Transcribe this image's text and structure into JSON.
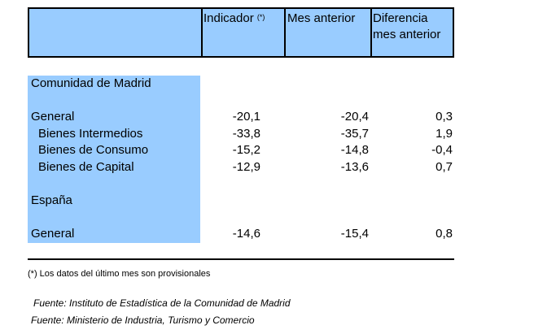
{
  "table": {
    "header": {
      "indicador": "Indicador",
      "indicador_mark": "(*)",
      "mes_anterior": "Mes anterior",
      "diferencia_line1": "Diferencia",
      "diferencia_line2": "mes anterior"
    },
    "sections": [
      {
        "title": "Comunidad de Madrid",
        "rows": [
          {
            "label": "General",
            "indicador": "-20,1",
            "mes_anterior": "-20,4",
            "diferencia": "0,3"
          },
          {
            "label": "Bienes Intermedios",
            "indicador": "-33,8",
            "mes_anterior": "-35,7",
            "diferencia": "1,9"
          },
          {
            "label": "Bienes de Consumo",
            "indicador": "-15,2",
            "mes_anterior": "-14,8",
            "diferencia": "-0,4"
          },
          {
            "label": "Bienes de Capital",
            "indicador": "-12,9",
            "mes_anterior": "-13,6",
            "diferencia": "0,7"
          }
        ]
      },
      {
        "title": "España",
        "rows": [
          {
            "label": "General",
            "indicador": "-14,6",
            "mes_anterior": "-15,4",
            "diferencia": "0,8"
          }
        ]
      }
    ]
  },
  "footnote": "(*) Los datos del último mes son provisionales",
  "sources": [
    "Fuente: Instituto de Estadística de la Comunidad de Madrid",
    "Fuente: Ministerio de Industria, Turismo y Comercio"
  ],
  "colors": {
    "header_fill": "#99CCFF",
    "label_band": "#99CCFF"
  }
}
